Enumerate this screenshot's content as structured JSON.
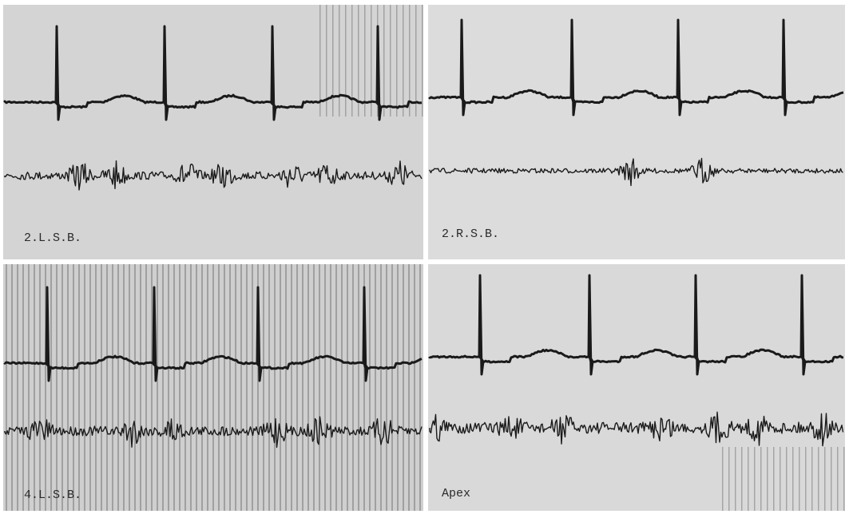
{
  "panels": [
    {
      "label": "2.L.S.B."
    },
    {
      "label": "2.R.S.B."
    },
    {
      "label": "4.L.S.B."
    },
    {
      "label": "Apex"
    }
  ]
}
